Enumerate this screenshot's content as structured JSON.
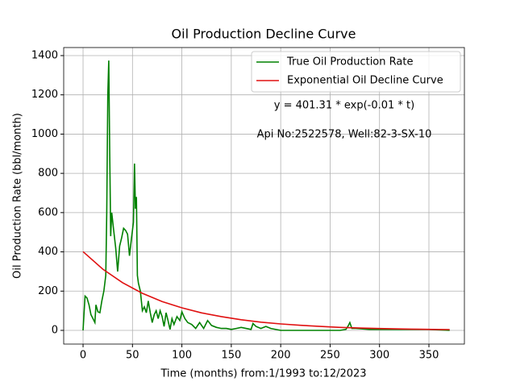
{
  "chart_data": {
    "type": "line",
    "title": "Oil Production Decline Curve",
    "xlabel": "Time (months) from:1/1993 to:12/2023",
    "ylabel": "Oil Production Rate (bbl/month)",
    "annotations": [
      "y = 401.31 * exp(-0.01 * t)",
      "Api No:2522578, Well:82-3-SX-10"
    ],
    "series": [
      {
        "name": "True Oil Production Rate",
        "color": "#008000",
        "x": [
          0,
          2,
          4,
          6,
          8,
          10,
          12,
          13,
          15,
          17,
          19,
          21,
          23,
          24,
          25,
          26,
          27,
          28,
          29,
          31,
          33,
          35,
          37,
          39,
          41,
          43,
          45,
          47,
          49,
          51,
          52,
          53,
          54,
          55,
          56,
          58,
          60,
          62,
          64,
          66,
          68,
          70,
          72,
          74,
          76,
          78,
          80,
          82,
          84,
          86,
          88,
          90,
          92,
          95,
          98,
          100,
          103,
          106,
          110,
          114,
          118,
          122,
          126,
          130,
          135,
          140,
          145,
          150,
          155,
          160,
          170,
          172,
          175,
          180,
          185,
          190,
          200,
          210,
          220,
          230,
          240,
          250,
          260,
          266,
          268,
          270,
          272,
          276,
          290,
          310,
          330,
          350,
          371
        ],
        "values": [
          0,
          175,
          165,
          130,
          80,
          60,
          40,
          130,
          95,
          90,
          150,
          200,
          280,
          600,
          1200,
          1375,
          900,
          480,
          600,
          510,
          420,
          300,
          430,
          470,
          520,
          510,
          490,
          380,
          470,
          550,
          850,
          620,
          680,
          280,
          240,
          200,
          100,
          120,
          90,
          150,
          90,
          40,
          80,
          100,
          60,
          100,
          70,
          20,
          90,
          50,
          5,
          60,
          30,
          70,
          50,
          95,
          60,
          40,
          30,
          10,
          40,
          10,
          50,
          25,
          15,
          10,
          10,
          5,
          10,
          15,
          5,
          35,
          20,
          10,
          20,
          10,
          0,
          0,
          0,
          0,
          0,
          0,
          0,
          5,
          20,
          40,
          10,
          10,
          5,
          5,
          5,
          5,
          0
        ]
      },
      {
        "name": "Exponential Oil Decline Curve",
        "color": "#e01010",
        "x": [
          0,
          20,
          40,
          60,
          80,
          100,
          120,
          140,
          160,
          180,
          200,
          220,
          240,
          260,
          280,
          300,
          320,
          340,
          360,
          371
        ],
        "values": [
          401,
          312,
          243,
          189,
          147,
          115,
          89,
          70,
          54,
          42,
          33,
          26,
          20,
          15,
          12,
          9.4,
          7.3,
          5.7,
          4.5,
          3.9
        ]
      }
    ],
    "xlim": [
      -19.6,
      385.9
    ],
    "ylim": [
      -69.8,
      1441
    ],
    "xticks": [
      0,
      50,
      100,
      150,
      200,
      250,
      300,
      350
    ],
    "yticks": [
      0,
      200,
      400,
      600,
      800,
      1000,
      1200,
      1400
    ],
    "grid": true,
    "legend": "upper right"
  }
}
